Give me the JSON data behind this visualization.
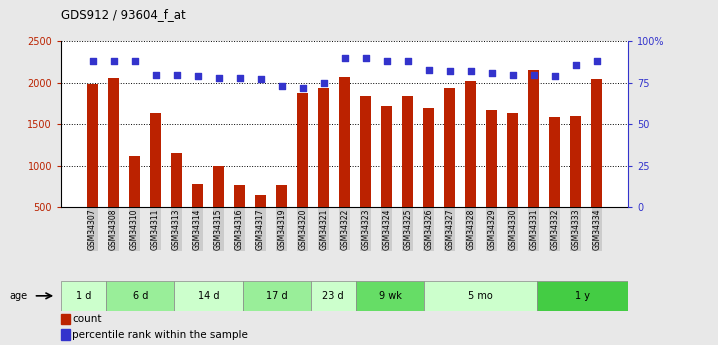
{
  "title": "GDS912 / 93604_f_at",
  "samples": [
    "GSM34307",
    "GSM34308",
    "GSM34310",
    "GSM34311",
    "GSM34313",
    "GSM34314",
    "GSM34315",
    "GSM34316",
    "GSM34317",
    "GSM34319",
    "GSM34320",
    "GSM34321",
    "GSM34322",
    "GSM34323",
    "GSM34324",
    "GSM34325",
    "GSM34326",
    "GSM34327",
    "GSM34328",
    "GSM34329",
    "GSM34330",
    "GSM34331",
    "GSM34332",
    "GSM34333",
    "GSM34334"
  ],
  "counts": [
    1980,
    2060,
    1110,
    1640,
    1150,
    780,
    1000,
    760,
    640,
    760,
    1880,
    1940,
    2070,
    1840,
    1720,
    1840,
    1700,
    1940,
    2020,
    1670,
    1640,
    2150,
    1590,
    1600,
    2040
  ],
  "percentile": [
    88,
    88,
    88,
    80,
    80,
    79,
    78,
    78,
    77,
    73,
    72,
    75,
    90,
    90,
    88,
    88,
    83,
    82,
    82,
    81,
    80,
    80,
    79,
    86,
    88
  ],
  "bar_color": "#bb2200",
  "dot_color": "#3333cc",
  "ylim_left": [
    500,
    2500
  ],
  "ylim_right": [
    0,
    100
  ],
  "yticks_left": [
    500,
    1000,
    1500,
    2000,
    2500
  ],
  "yticks_right": [
    0,
    25,
    50,
    75,
    100
  ],
  "yticklabels_right": [
    "0",
    "25",
    "50",
    "75",
    "100%"
  ],
  "groups": [
    {
      "label": "1 d",
      "start": 0,
      "end": 2,
      "color": "#ccffcc"
    },
    {
      "label": "6 d",
      "start": 2,
      "end": 5,
      "color": "#99ee99"
    },
    {
      "label": "14 d",
      "start": 5,
      "end": 8,
      "color": "#ccffcc"
    },
    {
      "label": "17 d",
      "start": 8,
      "end": 11,
      "color": "#99ee99"
    },
    {
      "label": "23 d",
      "start": 11,
      "end": 13,
      "color": "#ccffcc"
    },
    {
      "label": "9 wk",
      "start": 13,
      "end": 16,
      "color": "#66dd66"
    },
    {
      "label": "5 mo",
      "start": 16,
      "end": 21,
      "color": "#ccffcc"
    },
    {
      "label": "1 y",
      "start": 21,
      "end": 25,
      "color": "#44cc44"
    }
  ],
  "legend_count_label": "count",
  "legend_pct_label": "percentile rank within the sample",
  "age_label": "age",
  "background_color": "#e8e8e8",
  "plot_bg": "#ffffff",
  "xticklabel_bg": "#cccccc"
}
